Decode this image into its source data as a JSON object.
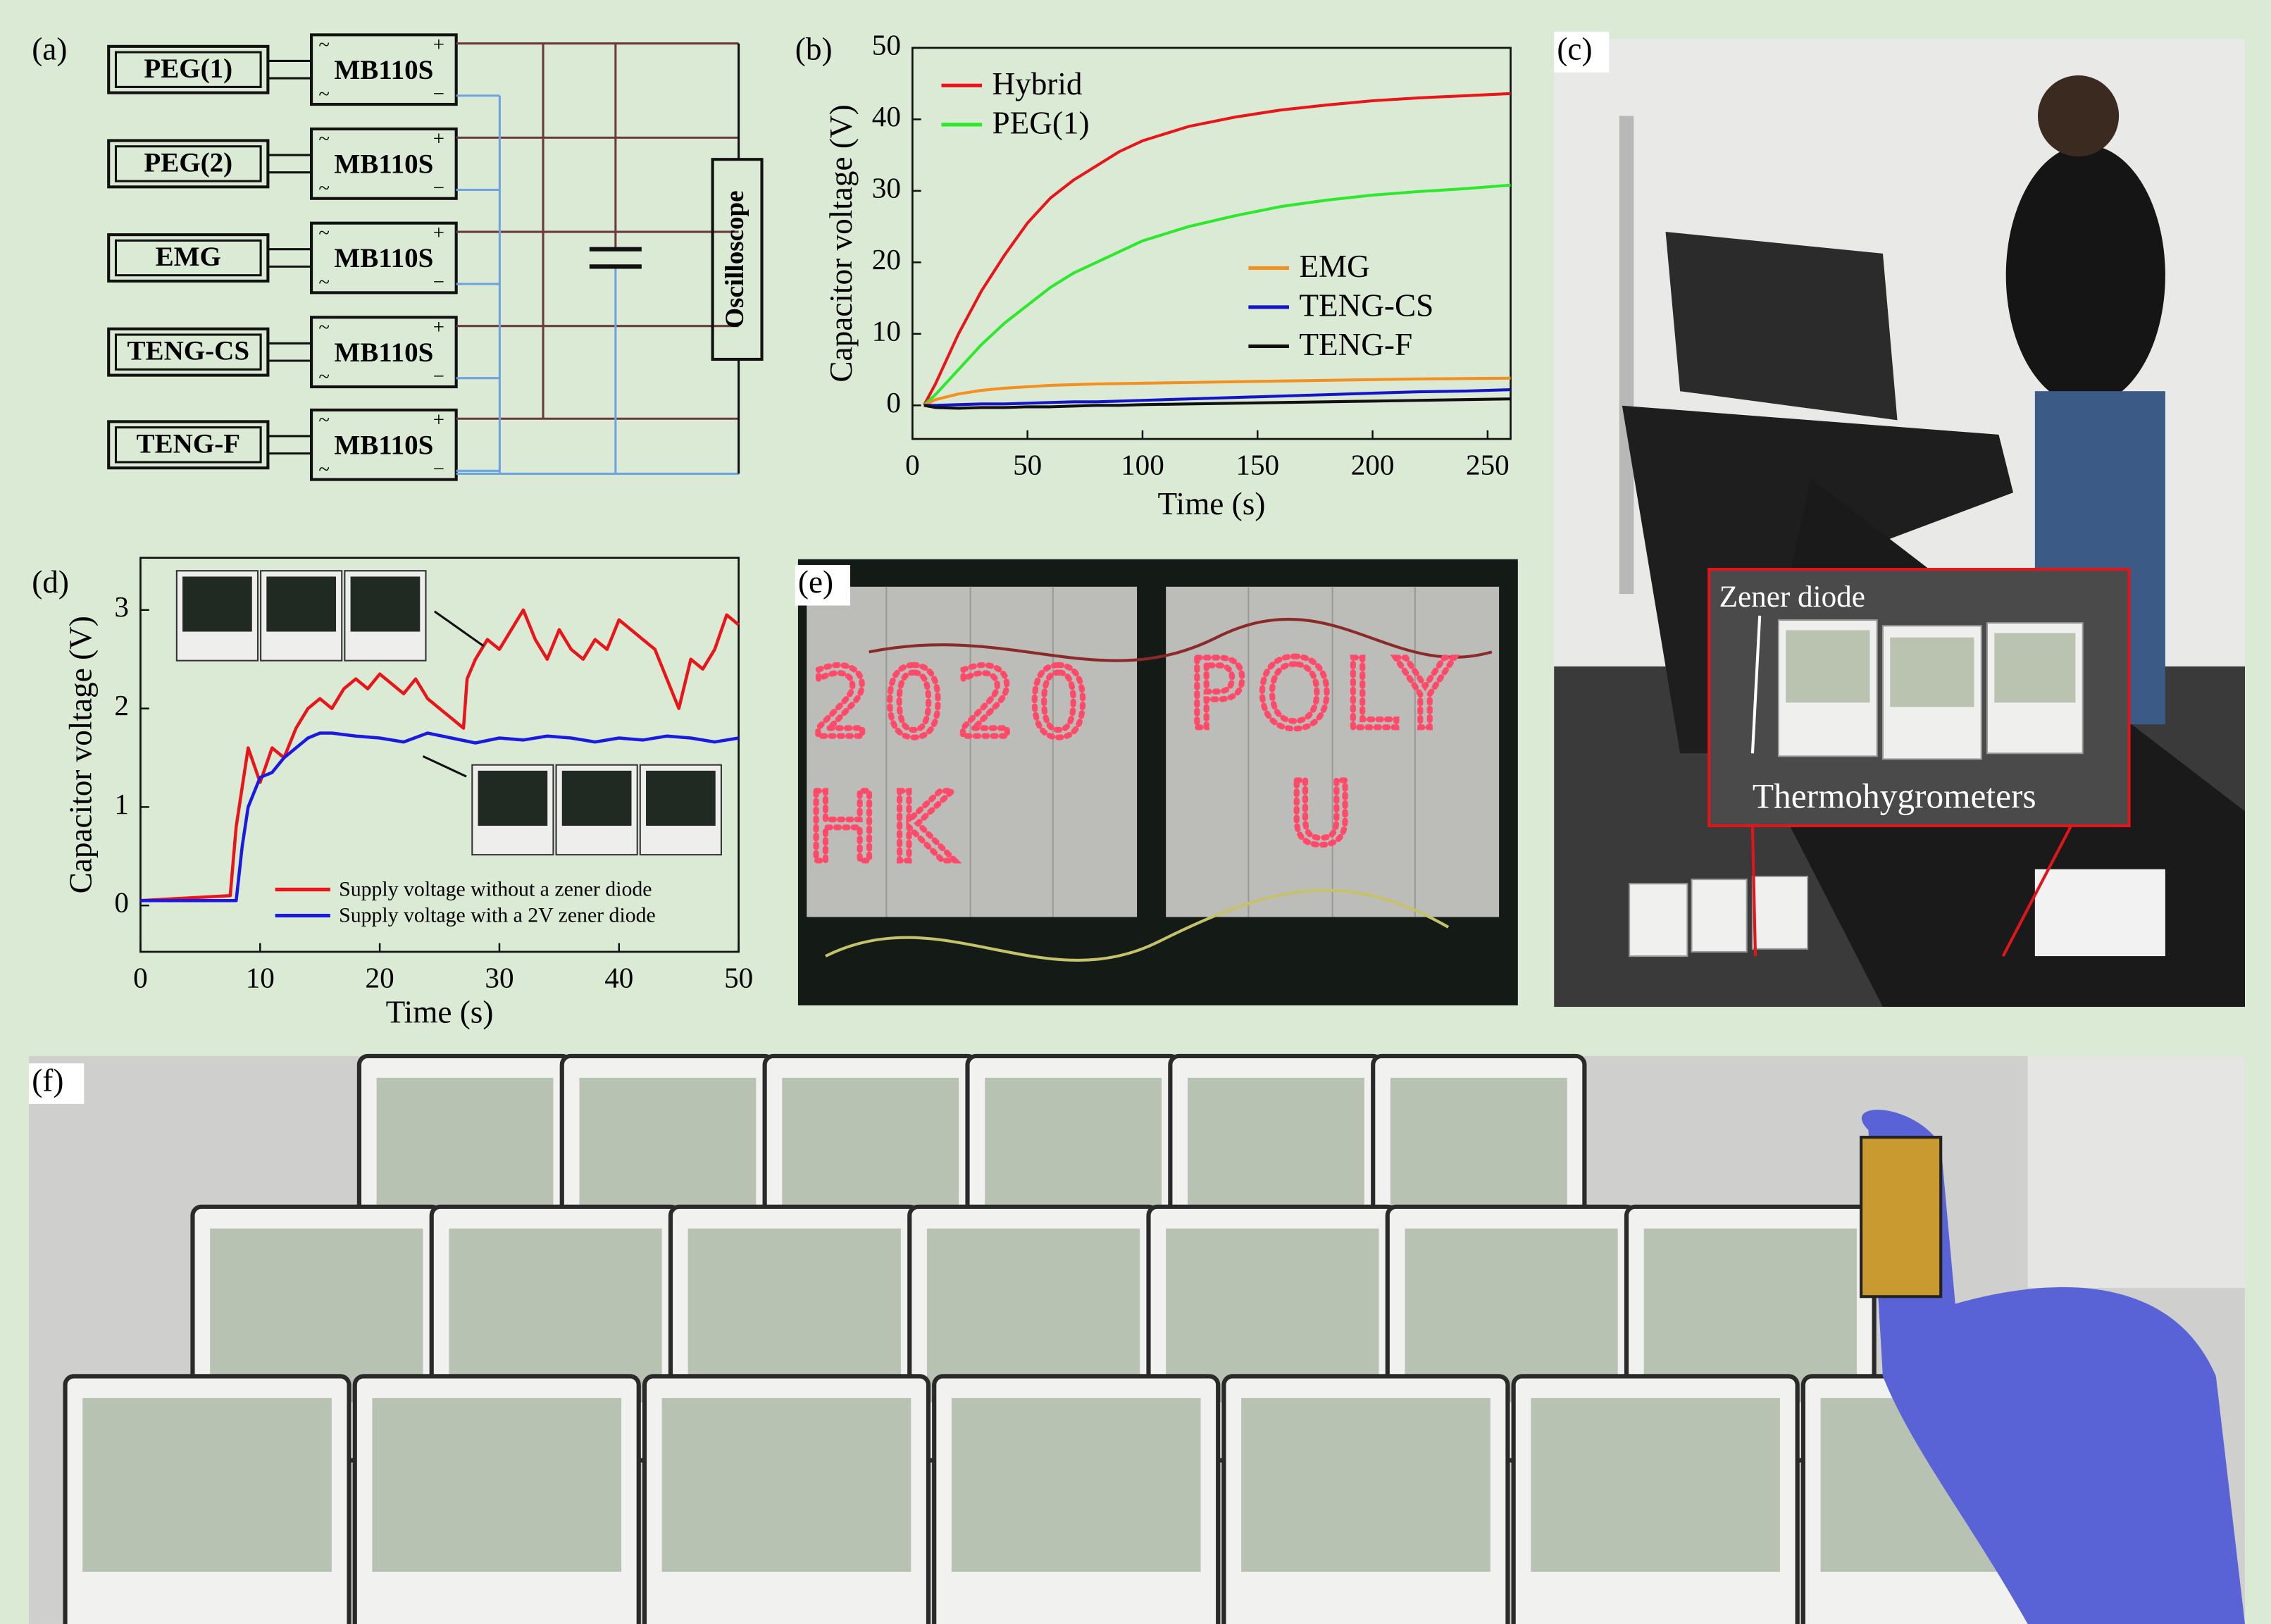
{
  "panel_labels": [
    "(a)",
    "(b)",
    "(c)",
    "(d)",
    "(e)",
    "(f)"
  ],
  "diagram_a": {
    "sources": [
      "PEG(1)",
      "PEG(2)",
      "EMG",
      "TENG-CS",
      "TENG-F"
    ],
    "bridges": [
      "MB110S",
      "MB110S",
      "MB110S",
      "MB110S",
      "MB110S"
    ],
    "terminals": {
      "plus": "+",
      "minus": "−",
      "ac": "~"
    },
    "oscilloscope": "Oscilloscope"
  },
  "chart_data": [
    {
      "type": "line",
      "xlabel": "Time (s)",
      "ylabel": "Capacitor voltage (V)",
      "xlim": [
        0,
        260
      ],
      "ylim": [
        -4.7,
        50
      ],
      "xticks": [
        0,
        50,
        100,
        150,
        200,
        250
      ],
      "yticks": [
        0,
        10,
        20,
        30,
        40,
        50
      ],
      "series": [
        {
          "name": "Hybrid",
          "color": "#e8161b",
          "x": [
            5,
            10,
            20,
            30,
            40,
            50,
            60,
            70,
            80,
            90,
            100,
            120,
            140,
            160,
            180,
            200,
            220,
            240,
            260
          ],
          "values": [
            0,
            3,
            10,
            16,
            21,
            25.5,
            29,
            31.5,
            33.5,
            35.5,
            37,
            39,
            40.3,
            41.3,
            42,
            42.6,
            43,
            43.3,
            43.6
          ]
        },
        {
          "name": "PEG(1)",
          "color": "#2ee82e",
          "x": [
            5,
            10,
            20,
            30,
            40,
            50,
            60,
            70,
            80,
            90,
            100,
            120,
            140,
            160,
            180,
            200,
            220,
            240,
            260
          ],
          "values": [
            0,
            1.5,
            5,
            8.5,
            11.5,
            14,
            16.5,
            18.5,
            20,
            21.5,
            23,
            25,
            26.5,
            27.8,
            28.7,
            29.4,
            29.9,
            30.3,
            30.8
          ]
        },
        {
          "name": "EMG",
          "color": "#f39022",
          "x": [
            5,
            10,
            20,
            30,
            40,
            50,
            60,
            70,
            80,
            90,
            100,
            120,
            140,
            160,
            180,
            200,
            220,
            240,
            260
          ],
          "values": [
            0,
            0.8,
            1.6,
            2.1,
            2.4,
            2.6,
            2.8,
            2.9,
            3,
            3.05,
            3.1,
            3.2,
            3.3,
            3.4,
            3.5,
            3.6,
            3.7,
            3.75,
            3.8
          ]
        },
        {
          "name": "TENG-CS",
          "color": "#1515c8",
          "x": [
            5,
            10,
            20,
            30,
            40,
            50,
            60,
            70,
            80,
            90,
            100,
            120,
            140,
            160,
            180,
            200,
            220,
            240,
            260
          ],
          "values": [
            0,
            0,
            0.1,
            0.2,
            0.2,
            0.3,
            0.4,
            0.5,
            0.5,
            0.6,
            0.7,
            0.9,
            1.1,
            1.3,
            1.5,
            1.7,
            1.9,
            2,
            2.2
          ]
        },
        {
          "name": "TENG-F",
          "color": "#111111",
          "x": [
            5,
            10,
            20,
            30,
            40,
            50,
            60,
            70,
            80,
            90,
            100,
            120,
            140,
            160,
            180,
            200,
            220,
            240,
            260
          ],
          "values": [
            0,
            -0.3,
            -0.4,
            -0.3,
            -0.3,
            -0.2,
            -0.2,
            -0.1,
            0,
            0,
            0.1,
            0.2,
            0.3,
            0.4,
            0.5,
            0.6,
            0.7,
            0.8,
            0.9
          ]
        }
      ]
    },
    {
      "type": "line",
      "xlabel": "Time (s)",
      "ylabel": "Capacitor voltage (V)",
      "xlim": [
        0,
        50
      ],
      "ylim": [
        -0.47,
        3.53
      ],
      "xticks": [
        0,
        10,
        20,
        30,
        40,
        50
      ],
      "yticks": [
        0,
        1,
        2,
        3
      ],
      "series": [
        {
          "name": "Supply voltage without a zener diode",
          "color": "#e8161b",
          "x": [
            0,
            7.5,
            8,
            9,
            10,
            11,
            12,
            13,
            14,
            15,
            16,
            17,
            18,
            19,
            20,
            21,
            22,
            23,
            24,
            25,
            26,
            27,
            27.3,
            28,
            29,
            30,
            31,
            32,
            33,
            34,
            35,
            36,
            37,
            38,
            39,
            40,
            41,
            42,
            43,
            44,
            45,
            46,
            47,
            48,
            49,
            50
          ],
          "values": [
            0.05,
            0.1,
            0.8,
            1.6,
            1.25,
            1.6,
            1.5,
            1.8,
            2.0,
            2.1,
            2.0,
            2.2,
            2.3,
            2.2,
            2.35,
            2.25,
            2.15,
            2.3,
            2.1,
            2.0,
            1.9,
            1.8,
            2.3,
            2.5,
            2.7,
            2.6,
            2.8,
            3.0,
            2.7,
            2.5,
            2.8,
            2.6,
            2.5,
            2.7,
            2.6,
            2.9,
            2.8,
            2.7,
            2.6,
            2.3,
            2.0,
            2.5,
            2.4,
            2.6,
            2.95,
            2.85
          ]
        },
        {
          "name": "Supply voltage with a 2V zener diode",
          "color": "#1a1ae0",
          "x": [
            0,
            8,
            8.5,
            9,
            10,
            11,
            12,
            13,
            14,
            15,
            16,
            18,
            20,
            22,
            24,
            26,
            28,
            30,
            32,
            34,
            36,
            38,
            40,
            42,
            44,
            46,
            48,
            50
          ],
          "values": [
            0.05,
            0.05,
            0.6,
            1.0,
            1.3,
            1.35,
            1.5,
            1.6,
            1.7,
            1.75,
            1.75,
            1.72,
            1.7,
            1.66,
            1.75,
            1.7,
            1.65,
            1.7,
            1.68,
            1.72,
            1.7,
            1.66,
            1.7,
            1.68,
            1.72,
            1.7,
            1.66,
            1.7
          ]
        }
      ]
    }
  ],
  "photo_c": {
    "annotations": [
      "Zener diode",
      "Thermohygrometers"
    ]
  },
  "photo_e": {
    "led_text": [
      "2020",
      "POLY",
      "HK",
      "U"
    ]
  }
}
